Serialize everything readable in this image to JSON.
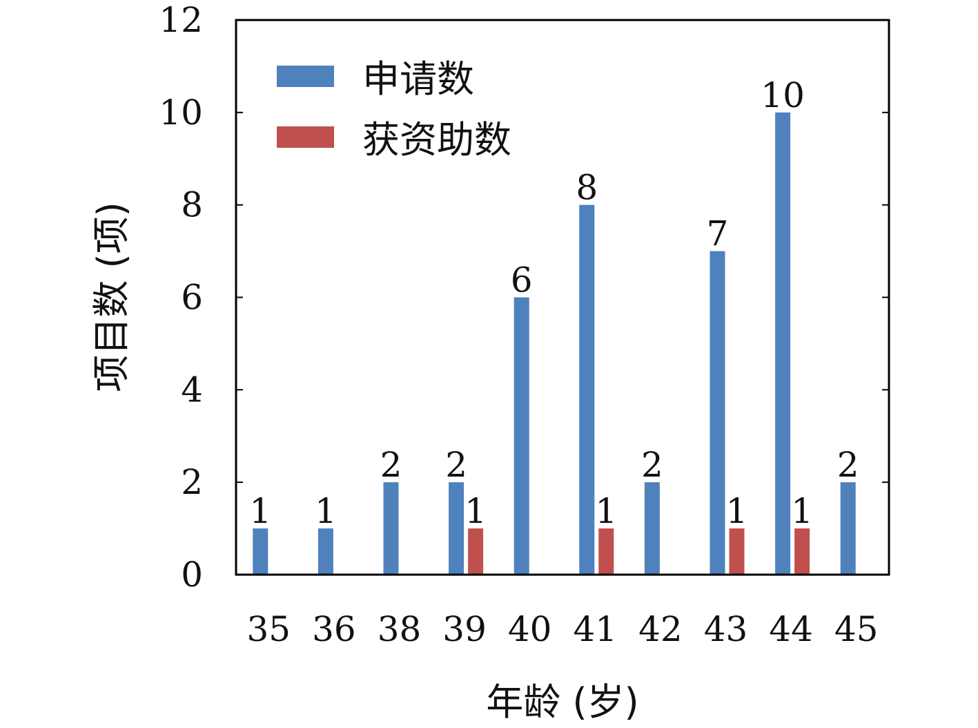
{
  "chart_data": {
    "type": "bar",
    "categories": [
      "35",
      "36",
      "38",
      "39",
      "40",
      "41",
      "42",
      "43",
      "44",
      "45"
    ],
    "series": [
      {
        "name": "申请数",
        "values": [
          1,
          1,
          2,
          2,
          6,
          8,
          2,
          7,
          10,
          2
        ],
        "color": "#4f81bd"
      },
      {
        "name": "获资助数",
        "values": [
          0,
          0,
          0,
          1,
          0,
          1,
          0,
          1,
          1,
          0
        ],
        "color": "#c0504d"
      }
    ],
    "xlabel": "年龄 (岁)",
    "ylabel": "项目数 (项)",
    "ylim": [
      0,
      12
    ],
    "yticks": [
      0,
      2,
      4,
      6,
      8,
      10,
      12
    ],
    "legend_position": "top-left",
    "grid": false
  }
}
